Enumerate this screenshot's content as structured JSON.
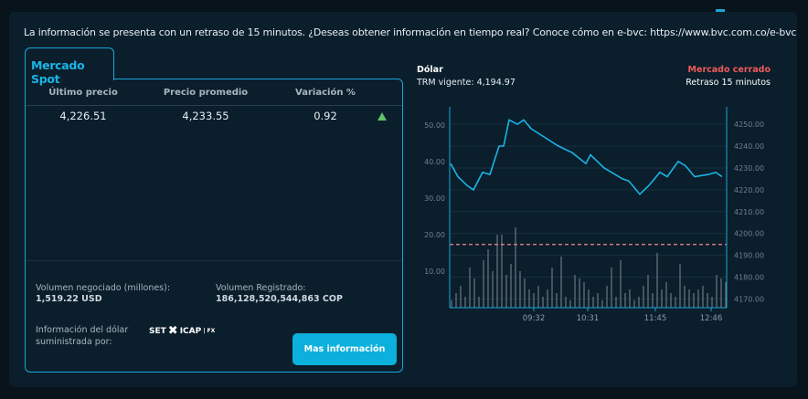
{
  "notice": "La información se presenta con un retraso de 15 minutos. ¿Deseas obtener información en tiempo real? Conoce cómo en e-bvc: https://www.bvc.com.co/e-bvc",
  "tab": "Mercado Spot",
  "table": {
    "headers": [
      "Último precio",
      "Precio promedio",
      "Variación %"
    ],
    "row": [
      "4,226.51",
      "4,233.55",
      "0.92"
    ],
    "trend_icon": "arrow-up-icon",
    "trend_color": "#5cc36a"
  },
  "volume": {
    "negotiated_label": "Volumen negociado (millones):",
    "negotiated_value": "1,519.22 USD",
    "registered_label": "Volumen Registrado:",
    "registered_value": "186,128,520,544,863 COP"
  },
  "provider": {
    "label": "Información del dólar suministrada por:",
    "logo": "SET ICAP | FX"
  },
  "more_button": "Mas información",
  "chart": {
    "title": "Dólar",
    "trm": "TRM vigente: 4,194.97",
    "status": "Mercado cerrado",
    "status_color": "#ef5a5a",
    "delay": "Retraso 15 minutos"
  },
  "chart_data": {
    "type": "line",
    "x_ticks": [
      "09:32",
      "10:31",
      "11:45",
      "12:46"
    ],
    "xlim": [
      "08:00",
      "13:03"
    ],
    "left_axis": {
      "ticks": [
        "10.00",
        "20.00",
        "30.00",
        "40.00",
        "50.00"
      ],
      "range": [
        0,
        55
      ]
    },
    "right_axis": {
      "ticks": [
        "4170.00",
        "4180.00",
        "4190.00",
        "4200.00",
        "4210.00",
        "4220.00",
        "4230.00",
        "4240.00",
        "4250.00"
      ],
      "range": [
        4166,
        4258
      ]
    },
    "reference_line": {
      "value": 4194.97,
      "color": "#f08a8a"
    },
    "price": {
      "color": "#19b5e6",
      "points": [
        [
          "08:01",
          4232
        ],
        [
          "08:09",
          4226
        ],
        [
          "08:19",
          4222
        ],
        [
          "08:26",
          4220
        ],
        [
          "08:36",
          4228
        ],
        [
          "08:44",
          4227
        ],
        [
          "08:54",
          4240
        ],
        [
          "08:59",
          4240
        ],
        [
          "09:05",
          4252
        ],
        [
          "09:14",
          4250
        ],
        [
          "09:21",
          4252
        ],
        [
          "09:29",
          4248
        ],
        [
          "09:44",
          4244
        ],
        [
          "09:59",
          4240
        ],
        [
          "10:14",
          4237
        ],
        [
          "10:29",
          4232
        ],
        [
          "10:34",
          4236
        ],
        [
          "10:49",
          4230
        ],
        [
          "10:57",
          4228
        ],
        [
          "11:09",
          4225
        ],
        [
          "11:16",
          4224
        ],
        [
          "11:28",
          4218
        ],
        [
          "11:38",
          4222
        ],
        [
          "11:50",
          4228
        ],
        [
          "11:58",
          4226
        ],
        [
          "12:10",
          4233
        ],
        [
          "12:18",
          4231
        ],
        [
          "12:28",
          4226
        ],
        [
          "12:43",
          4227
        ],
        [
          "12:51",
          4228
        ],
        [
          "12:58",
          4226
        ]
      ]
    },
    "volume_bars": {
      "color": "#6b7780",
      "start": "08:02",
      "step_minutes": 5,
      "values": [
        2,
        4,
        6,
        3,
        11,
        8,
        3,
        13,
        16,
        10,
        20,
        20,
        9,
        12,
        22,
        10,
        8,
        5,
        4,
        6,
        3,
        5,
        11,
        4,
        14,
        3,
        2,
        9,
        8,
        7,
        5,
        3,
        4,
        2,
        6,
        11,
        3,
        13,
        4,
        5,
        2,
        3,
        6,
        9,
        4,
        15,
        5,
        7,
        4,
        3,
        12,
        6,
        5,
        4,
        5,
        6,
        4,
        3,
        9,
        8,
        7
      ]
    }
  }
}
